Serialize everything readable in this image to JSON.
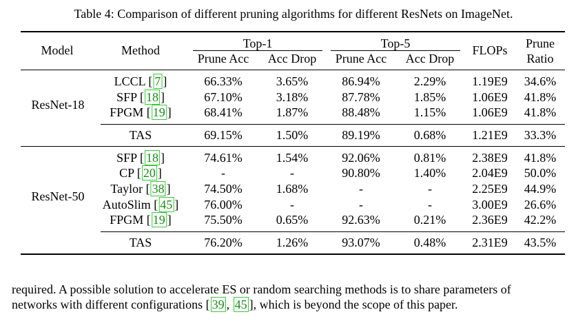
{
  "caption": "Table 4: Comparison of different pruning algorithms for different ResNets on ImageNet.",
  "header": {
    "model": "Model",
    "method": "Method",
    "top1": "Top-1",
    "top5": "Top-5",
    "prune_acc": "Prune Acc",
    "acc_drop": "Acc Drop",
    "flops": "FLOPs",
    "prune_ratio_1": "Prune",
    "prune_ratio_2": "Ratio"
  },
  "groups": [
    {
      "model": "ResNet-18",
      "rows": [
        {
          "method": "LCCL",
          "ref": "7",
          "t1_acc": "66.33%",
          "t1_drop": "3.65%",
          "t5_acc": "86.94%",
          "t5_drop": "2.29%",
          "flops": "1.19E9",
          "ratio": "34.6%"
        },
        {
          "method": "SFP",
          "ref": "18",
          "t1_acc": "67.10%",
          "t1_drop": "3.18%",
          "t5_acc": "87.78%",
          "t5_drop": "1.85%",
          "flops": "1.06E9",
          "ratio": "41.8%"
        },
        {
          "method": "FPGM",
          "ref": "19",
          "t1_acc": "68.41%",
          "t1_drop": "1.87%",
          "t5_acc": "88.48%",
          "t5_drop": "1.15%",
          "flops": "1.06E9",
          "ratio": "41.8%"
        }
      ],
      "tas": {
        "method": "TAS",
        "t1_acc": "69.15%",
        "t1_drop": "1.50%",
        "t5_acc": "89.19%",
        "t5_drop": "0.68%",
        "flops": "1.21E9",
        "ratio": "33.3%"
      }
    },
    {
      "model": "ResNet-50",
      "rows": [
        {
          "method": "SFP",
          "ref": "18",
          "t1_acc": "74.61%",
          "t1_drop": "1.54%",
          "t5_acc": "92.06%",
          "t5_drop": "0.81%",
          "flops": "2.38E9",
          "ratio": "41.8%"
        },
        {
          "method": "CP",
          "ref": "20",
          "t1_acc": "-",
          "t1_drop": "-",
          "t5_acc": "90.80%",
          "t5_drop": "1.40%",
          "flops": "2.04E9",
          "ratio": "50.0%"
        },
        {
          "method": "Taylor",
          "ref": "38",
          "t1_acc": "74.50%",
          "t1_drop": "1.68%",
          "t5_acc": "-",
          "t5_drop": "-",
          "flops": "2.25E9",
          "ratio": "44.9%"
        },
        {
          "method": "AutoSlim",
          "ref": "45",
          "t1_acc": "76.00%",
          "t1_drop": "-",
          "t5_acc": "-",
          "t5_drop": "-",
          "flops": "3.00E9",
          "ratio": "26.6%"
        },
        {
          "method": "FPGM",
          "ref": "19",
          "t1_acc": "75.50%",
          "t1_drop": "0.65%",
          "t5_acc": "92.63%",
          "t5_drop": "0.21%",
          "flops": "2.36E9",
          "ratio": "42.2%"
        }
      ],
      "tas": {
        "method": "TAS",
        "t1_acc": "76.20%",
        "t1_drop": "1.26%",
        "t5_acc": "93.07%",
        "t5_drop": "0.48%",
        "flops": "2.31E9",
        "ratio": "43.5%"
      }
    }
  ],
  "paragraph": {
    "line1": "required. A possible solution to accelerate ES or random searching methods is to share parameters of",
    "line2_pre": "networks with different configurations [",
    "ref_a": "39",
    "sep": ", ",
    "ref_b": "45",
    "line2_post": "], which is beyond the scope of this paper."
  }
}
